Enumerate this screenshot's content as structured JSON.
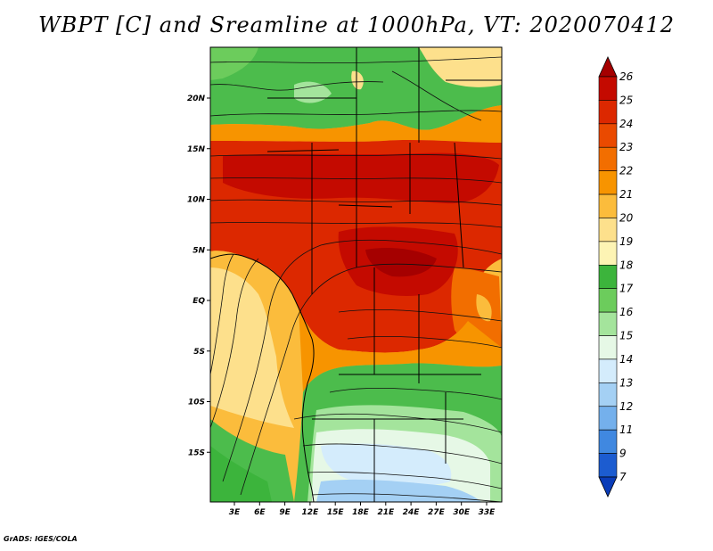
{
  "title": "WBPT [C] and Sreamline at 1000hPa, VT: 2020070412",
  "footer": "GrADS: IGES/COLA",
  "map": {
    "lat_labels": [
      "20N",
      "15N",
      "10N",
      "5N",
      "EQ",
      "5S",
      "10S",
      "15S"
    ],
    "lat_values": [
      20,
      15,
      10,
      5,
      0,
      -5,
      -10,
      -15
    ],
    "lon_labels": [
      "3E",
      "6E",
      "9E",
      "12E",
      "15E",
      "18E",
      "21E",
      "24E",
      "27E",
      "30E",
      "33E"
    ],
    "lon_values": [
      3,
      6,
      9,
      12,
      15,
      18,
      21,
      24,
      27,
      30,
      33
    ],
    "lon_range": [
      0,
      34
    ],
    "lat_range": [
      -20,
      25
    ]
  },
  "colorbar": {
    "labels": [
      "26",
      "25",
      "24",
      "23",
      "22",
      "21",
      "20",
      "19",
      "18",
      "17",
      "16",
      "15",
      "14",
      "13",
      "12",
      "11",
      "9",
      "7"
    ],
    "colors": [
      "#a50000",
      "#c40a00",
      "#dc2800",
      "#ea4a00",
      "#f26e00",
      "#f79400",
      "#fbbc3c",
      "#fde08c",
      "#fdf4b4",
      "#3cb43c",
      "#6ccc5c",
      "#a4e49c",
      "#e6f8e6",
      "#d4ecfc",
      "#a4d0f4",
      "#74b0ec",
      "#4088e0",
      "#1c5cd0",
      "#0a3cb8"
    ]
  }
}
